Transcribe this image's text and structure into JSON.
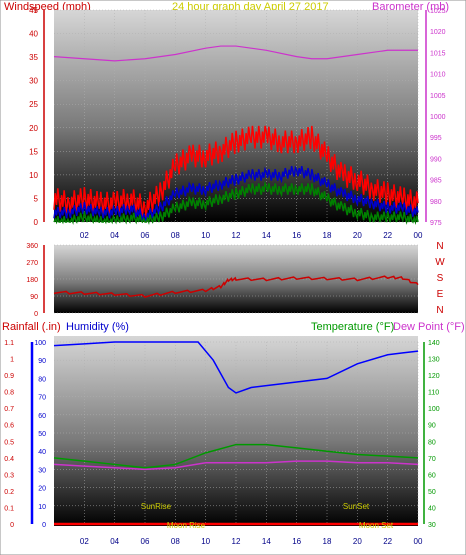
{
  "header": {
    "left_title": "Windspeed (mph)",
    "center_title": "24 hour graph day   April 27 2017",
    "right_title": "Barometer (mb)"
  },
  "bottom_header": {
    "rain_label": "Rainfall (.in)",
    "humidity_label": "Humidity (%)",
    "temp_label": "Temperature (°F)",
    "dew_label": "Dew Point (°F)"
  },
  "colors": {
    "wind": "#ff0000",
    "wind_avg": "#0000cc",
    "wind_min": "#008000",
    "barometer": "#cc33cc",
    "direction": "#cc0000",
    "humidity": "#0000ff",
    "temperature": "#009900",
    "dewpoint": "#cc33cc",
    "rain": "#ff0000",
    "title_center": "#cccc00",
    "annotation": "#cccc00",
    "dir_letters": "#cc0000"
  },
  "chart_data": [
    {
      "type": "line",
      "x_ticks": [
        "02",
        "04",
        "06",
        "08",
        "10",
        "12",
        "14",
        "16",
        "18",
        "20",
        "22",
        "00"
      ],
      "ylim_left": [
        0,
        45
      ],
      "y_ticks_left": [
        0,
        5,
        10,
        15,
        20,
        25,
        30,
        35,
        40,
        45
      ],
      "ylim_right": [
        975,
        1025
      ],
      "y_ticks_right": [
        975,
        980,
        985,
        990,
        995,
        1000,
        1005,
        1010,
        1015,
        1020,
        1025
      ],
      "series": [
        {
          "key": "gust",
          "axis": "left",
          "color": "#ff0000",
          "x": [
            0,
            1,
            2,
            3,
            4,
            5,
            6,
            7,
            8,
            9,
            10,
            11,
            12,
            13,
            14,
            15,
            16,
            17,
            18,
            19,
            20,
            21,
            22,
            23,
            24
          ],
          "y": [
            5,
            4,
            5,
            4,
            4,
            5,
            3,
            6,
            12,
            14,
            14,
            15,
            17,
            18,
            18,
            17,
            17,
            18,
            14,
            10,
            9,
            7,
            6,
            5,
            4
          ]
        },
        {
          "key": "avg",
          "axis": "left",
          "color": "#0000cc",
          "x": [
            0,
            1,
            2,
            3,
            4,
            5,
            6,
            7,
            8,
            9,
            10,
            11,
            12,
            13,
            14,
            15,
            16,
            17,
            18,
            19,
            20,
            21,
            22,
            23,
            24
          ],
          "y": [
            2,
            2,
            3,
            2,
            2,
            3,
            1,
            3,
            6,
            7,
            7,
            8,
            9,
            10,
            10,
            10,
            11,
            10,
            8,
            6,
            5,
            4,
            3,
            3,
            2
          ]
        },
        {
          "key": "min",
          "axis": "left",
          "color": "#008000",
          "x": [
            0,
            1,
            2,
            3,
            4,
            5,
            6,
            7,
            8,
            9,
            10,
            11,
            12,
            13,
            14,
            15,
            16,
            17,
            18,
            19,
            20,
            21,
            22,
            23,
            24
          ],
          "y": [
            0,
            0,
            1,
            0,
            0,
            1,
            0,
            1,
            3,
            4,
            4,
            5,
            6,
            7,
            7,
            7,
            7,
            7,
            5,
            3,
            2,
            1,
            1,
            1,
            0
          ]
        },
        {
          "key": "baro",
          "axis": "right",
          "color": "#cc33cc",
          "x": [
            0,
            2,
            4,
            6,
            8,
            10,
            11,
            12,
            13,
            14,
            16,
            17,
            18,
            20,
            22,
            24
          ],
          "y": [
            1014,
            1013.5,
            1013,
            1013.5,
            1014.5,
            1016,
            1016.5,
            1016.5,
            1016,
            1015.5,
            1014,
            1013.5,
            1013.5,
            1014.5,
            1015.5,
            1015.5
          ]
        }
      ]
    },
    {
      "type": "line",
      "x_ticks": [],
      "ylim_left": [
        0,
        360
      ],
      "y_ticks_left": [
        0,
        90,
        180,
        270,
        360
      ],
      "y_letters_right": [
        "N",
        "W",
        "S",
        "E",
        "N"
      ],
      "series": [
        {
          "key": "direction",
          "axis": "left",
          "color": "#cc0000",
          "x": [
            0,
            2,
            4,
            6,
            8,
            10,
            11,
            11.5,
            12,
            14,
            16,
            18,
            20,
            22,
            23,
            24
          ],
          "y": [
            110,
            105,
            100,
            90,
            110,
            120,
            140,
            175,
            180,
            178,
            185,
            182,
            178,
            190,
            185,
            150
          ]
        }
      ]
    },
    {
      "type": "line",
      "x_ticks": [
        "02",
        "04",
        "06",
        "08",
        "10",
        "12",
        "14",
        "16",
        "18",
        "20",
        "22",
        "00"
      ],
      "ylim_rain": [
        0,
        1.1
      ],
      "y_ticks_rain": [
        0,
        0.1,
        0.2,
        0.3,
        0.4,
        0.5,
        0.6,
        0.7,
        0.8,
        0.9,
        1,
        1.1
      ],
      "ylim_hum": [
        0,
        100
      ],
      "y_ticks_hum": [
        0,
        10,
        20,
        30,
        40,
        50,
        60,
        70,
        80,
        90,
        100
      ],
      "ylim_temp": [
        30,
        140
      ],
      "y_ticks_temp": [
        30,
        40,
        50,
        60,
        70,
        80,
        90,
        100,
        110,
        120,
        130,
        140
      ],
      "annotations_top": [
        "SunRise",
        "SunSet"
      ],
      "annotations_bottom": [
        "Moon Rise",
        "Moon Set"
      ],
      "series": [
        {
          "key": "humidity",
          "axis": "hum",
          "color": "#0000ff",
          "x": [
            0,
            2,
            4,
            6,
            8,
            9.5,
            10.5,
            11.5,
            12,
            13,
            14,
            16,
            18,
            20,
            22,
            23,
            24
          ],
          "y": [
            98,
            99,
            100,
            100,
            100,
            100,
            90,
            75,
            72,
            75,
            76,
            78,
            80,
            88,
            93,
            94,
            95
          ]
        },
        {
          "key": "temperature",
          "axis": "temp",
          "color": "#009900",
          "x": [
            0,
            2,
            4,
            6,
            8,
            10,
            12,
            14,
            16,
            18,
            20,
            22,
            24
          ],
          "y": [
            70,
            68,
            66,
            64,
            66,
            73,
            78,
            78,
            76,
            74,
            72,
            71,
            70
          ]
        },
        {
          "key": "dewpoint",
          "axis": "temp",
          "color": "#cc33cc",
          "x": [
            0,
            2,
            4,
            6,
            8,
            10,
            12,
            14,
            16,
            18,
            20,
            22,
            24
          ],
          "y": [
            66,
            65,
            64,
            63,
            64,
            67,
            67,
            67,
            68,
            68,
            67,
            67,
            66
          ]
        },
        {
          "key": "rain",
          "axis": "rain",
          "color": "#ff0000",
          "x": [
            0,
            24
          ],
          "y": [
            0,
            0
          ]
        }
      ]
    }
  ]
}
